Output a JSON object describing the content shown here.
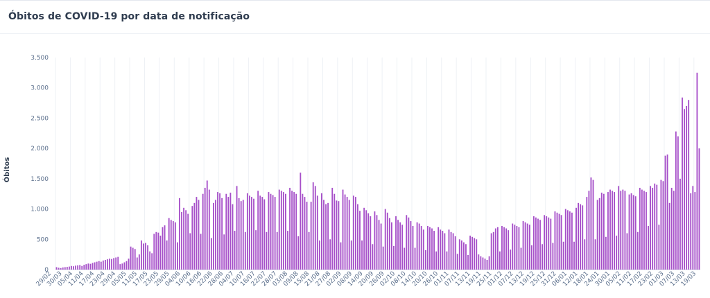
{
  "header": {
    "title": "Óbitos de COVID-19 por data de notificação"
  },
  "chart_data": {
    "type": "bar",
    "title": "Óbitos de COVID-19 por data de notificação",
    "xlabel": "",
    "ylabel": "Óbitos",
    "ylim": [
      0,
      3500
    ],
    "yticks": [
      0,
      500,
      1000,
      1500,
      2000,
      2500,
      3000,
      3500
    ],
    "ytick_labels": [
      "0",
      "500",
      "1.000",
      "1.500",
      "2.000",
      "2.500",
      "3.000",
      "3.500"
    ],
    "grid": "vertical",
    "bar_color": "#a64fc9",
    "x_tick_labels": [
      "29/02",
      "30/03",
      "05/04",
      "11/04",
      "17/04",
      "23/04",
      "29/04",
      "05/05",
      "11/05",
      "17/05",
      "23/05",
      "29/05",
      "04/06",
      "10/06",
      "16/06",
      "22/06",
      "28/06",
      "04/07",
      "10/07",
      "16/07",
      "22/07",
      "28/07",
      "03/08",
      "09/08",
      "15/08",
      "21/08",
      "27/08",
      "02/09",
      "08/09",
      "14/09",
      "20/09",
      "26/09",
      "02/10",
      "08/10",
      "14/10",
      "20/10",
      "26/10",
      "01/11",
      "07/11",
      "13/11",
      "19/11",
      "25/11",
      "01/12",
      "07/12",
      "13/12",
      "19/12",
      "25/12",
      "31/12",
      "06/01",
      "12/01",
      "18/01",
      "24/01",
      "30/01",
      "05/02",
      "11/02",
      "17/02",
      "23/02",
      "01/03",
      "07/03",
      "13/03",
      "19/03"
    ],
    "values": [
      40,
      30,
      25,
      35,
      40,
      45,
      50,
      60,
      55,
      65,
      70,
      75,
      60,
      80,
      90,
      100,
      95,
      110,
      120,
      130,
      140,
      130,
      150,
      160,
      170,
      180,
      175,
      190,
      200,
      210,
      90,
      100,
      120,
      140,
      180,
      380,
      360,
      340,
      200,
      250,
      480,
      430,
      440,
      400,
      300,
      270,
      590,
      620,
      610,
      560,
      700,
      730,
      480,
      850,
      820,
      800,
      780,
      450,
      1180,
      950,
      1020,
      980,
      920,
      600,
      1050,
      1100,
      1200,
      1150,
      590,
      1250,
      1350,
      1470,
      1320,
      520,
      1100,
      1150,
      1280,
      1260,
      1180,
      580,
      1250,
      1200,
      1270,
      1080,
      640,
      1380,
      1180,
      1130,
      1150,
      620,
      1260,
      1220,
      1200,
      1170,
      650,
      1300,
      1220,
      1200,
      1160,
      620,
      1280,
      1250,
      1230,
      1200,
      620,
      1320,
      1300,
      1280,
      1250,
      640,
      1350,
      1300,
      1280,
      1250,
      550,
      1600,
      1250,
      1200,
      1120,
      620,
      1120,
      1440,
      1380,
      1220,
      480,
      1260,
      1150,
      1080,
      1100,
      500,
      1350,
      1250,
      1140,
      1130,
      450,
      1320,
      1240,
      1200,
      1150,
      480,
      1220,
      1200,
      1080,
      970,
      480,
      1020,
      980,
      930,
      880,
      420,
      960,
      900,
      820,
      760,
      380,
      1000,
      940,
      850,
      780,
      390,
      880,
      820,
      780,
      740,
      360,
      900,
      860,
      800,
      720,
      360,
      780,
      760,
      720,
      660,
      320,
      720,
      700,
      680,
      640,
      300,
      700,
      660,
      640,
      600,
      300,
      660,
      620,
      600,
      550,
      260,
      500,
      480,
      450,
      420,
      240,
      560,
      540,
      520,
      500,
      250,
      220,
      200,
      180,
      160,
      220,
      600,
      620,
      680,
      700,
      300,
      720,
      700,
      680,
      650,
      330,
      760,
      740,
      720,
      700,
      360,
      800,
      780,
      760,
      740,
      400,
      880,
      860,
      840,
      820,
      420,
      900,
      880,
      860,
      840,
      440,
      960,
      940,
      920,
      900,
      460,
      1000,
      980,
      960,
      940,
      460,
      1020,
      1100,
      1080,
      1060,
      500,
      1200,
      1300,
      1520,
      1480,
      500,
      1150,
      1180,
      1270,
      1250,
      540,
      1280,
      1320,
      1300,
      1280,
      560,
      1380,
      1300,
      1320,
      1300,
      600,
      1240,
      1260,
      1230,
      1210,
      620,
      1350,
      1320,
      1300,
      1280,
      720,
      1380,
      1350,
      1420,
      1400,
      740,
      1480,
      1460,
      1880,
      1900,
      1100,
      1350,
      1300,
      2280,
      2200,
      1500,
      2840,
      2650,
      2700,
      2800,
      1260,
      1380,
      1280,
      3250,
      2000
    ]
  }
}
